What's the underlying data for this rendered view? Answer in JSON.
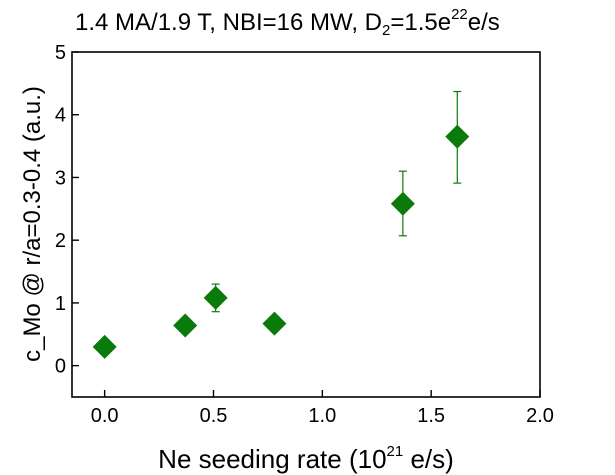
{
  "chart_data": {
    "type": "scatter",
    "title": {
      "main": "1.4 MA/1.9 T, NBI=16 MW, D",
      "sub": "2",
      "mid": "=1.5e",
      "sup": "22",
      "end": "e/s"
    },
    "xlabel": {
      "main": "Ne seeding rate  (10",
      "sup": "21",
      "end": " e/s)"
    },
    "ylabel": "c_Mo @ r/a=0.3-0.4 (a.u.)",
    "xlim": [
      -0.15,
      2.0
    ],
    "ylim": [
      -0.5,
      5
    ],
    "x_ticks": [
      0.0,
      0.5,
      1.0,
      1.5,
      2.0
    ],
    "x_tick_labels": [
      "0.0",
      "0.5",
      "1.0",
      "1.5",
      "2.0"
    ],
    "y_ticks": [
      0,
      1,
      2,
      3,
      4,
      5
    ],
    "y_tick_labels": [
      "0",
      "1",
      "2",
      "3",
      "4",
      "5"
    ],
    "grid": false,
    "marker": "diamond",
    "color": "#0a7a0a",
    "series": [
      {
        "x": [
          0.0,
          0.37,
          0.51,
          0.78,
          1.37,
          1.62
        ],
        "y": [
          0.3,
          0.64,
          1.08,
          0.67,
          2.58,
          3.65
        ],
        "err_low": [
          null,
          null,
          0.86,
          null,
          2.07,
          2.91
        ],
        "err_high": [
          null,
          null,
          1.3,
          null,
          3.1,
          4.37
        ]
      }
    ]
  }
}
